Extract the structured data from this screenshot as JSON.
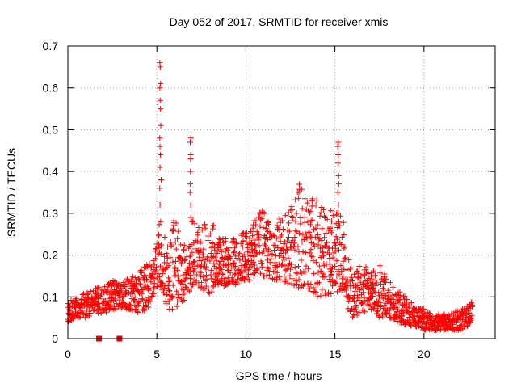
{
  "chart_data": {
    "type": "scatter",
    "title": "Day 052 of 2017, SRMTID for receiver xmis",
    "xlabel": "GPS time / hours",
    "ylabel": "SRMTID / TECUs",
    "xlim": [
      0,
      24
    ],
    "ylim": [
      0,
      0.7
    ],
    "xticks": [
      0,
      5,
      10,
      15,
      20
    ],
    "yticks": [
      0,
      0.1,
      0.2,
      0.3,
      0.4,
      0.5,
      0.6,
      0.7
    ],
    "xtick_labels": [
      "0",
      "5",
      "10",
      "15",
      "20"
    ],
    "ytick_labels": [
      "0",
      "0.1",
      "0.2",
      "0.3",
      "0.4",
      "0.5",
      "0.6",
      "0.7"
    ],
    "grid": true,
    "marker": "+",
    "colors": {
      "series": "#ff0000",
      "square_markers": "#e00000",
      "grid": "#a0a0a0",
      "axes": "#000000"
    },
    "envelope": {
      "hours": [
        0,
        0.5,
        1,
        1.5,
        2,
        2.5,
        3,
        3.5,
        4,
        4.5,
        5,
        5.2,
        5.5,
        6,
        6.5,
        7,
        7.5,
        8,
        8.5,
        9,
        9.5,
        10,
        10.5,
        11,
        11.5,
        12,
        12.5,
        13,
        13.5,
        14,
        14.5,
        15,
        15.5,
        15.8,
        16,
        16.5,
        17,
        17.5,
        18,
        18.5,
        19,
        19.5,
        20,
        20.5,
        21,
        21.5,
        22,
        22.5,
        22.7
      ],
      "low": [
        0.04,
        0.05,
        0.05,
        0.06,
        0.06,
        0.07,
        0.07,
        0.07,
        0.06,
        0.07,
        0.12,
        0.13,
        0.07,
        0.07,
        0.08,
        0.12,
        0.12,
        0.1,
        0.12,
        0.13,
        0.13,
        0.14,
        0.14,
        0.15,
        0.14,
        0.14,
        0.13,
        0.12,
        0.12,
        0.1,
        0.1,
        0.1,
        0.12,
        0.06,
        0.05,
        0.06,
        0.07,
        0.05,
        0.05,
        0.04,
        0.03,
        0.03,
        0.02,
        0.02,
        0.02,
        0.02,
        0.02,
        0.03,
        0.05
      ],
      "high": [
        0.09,
        0.1,
        0.11,
        0.12,
        0.13,
        0.14,
        0.13,
        0.15,
        0.16,
        0.18,
        0.25,
        0.29,
        0.24,
        0.29,
        0.22,
        0.29,
        0.26,
        0.31,
        0.25,
        0.24,
        0.24,
        0.26,
        0.29,
        0.31,
        0.28,
        0.29,
        0.33,
        0.37,
        0.33,
        0.34,
        0.3,
        0.32,
        0.28,
        0.2,
        0.16,
        0.18,
        0.17,
        0.18,
        0.14,
        0.12,
        0.1,
        0.08,
        0.07,
        0.06,
        0.06,
        0.06,
        0.07,
        0.08,
        0.09
      ]
    },
    "spikes": [
      {
        "hour": 5.2,
        "values": [
          0.28,
          0.32,
          0.36,
          0.38,
          0.41,
          0.44,
          0.46,
          0.48,
          0.51,
          0.55,
          0.57,
          0.6,
          0.61,
          0.65,
          0.66
        ]
      },
      {
        "hour": 6.9,
        "values": [
          0.29,
          0.32,
          0.35,
          0.37,
          0.4,
          0.43,
          0.44,
          0.47,
          0.48
        ]
      },
      {
        "hour": 15.2,
        "values": [
          0.3,
          0.32,
          0.35,
          0.37,
          0.39,
          0.42,
          0.44,
          0.46,
          0.47
        ]
      }
    ],
    "square_markers": [
      {
        "x": 1.75,
        "y": 0
      },
      {
        "x": 2.9,
        "y": 0
      }
    ]
  }
}
